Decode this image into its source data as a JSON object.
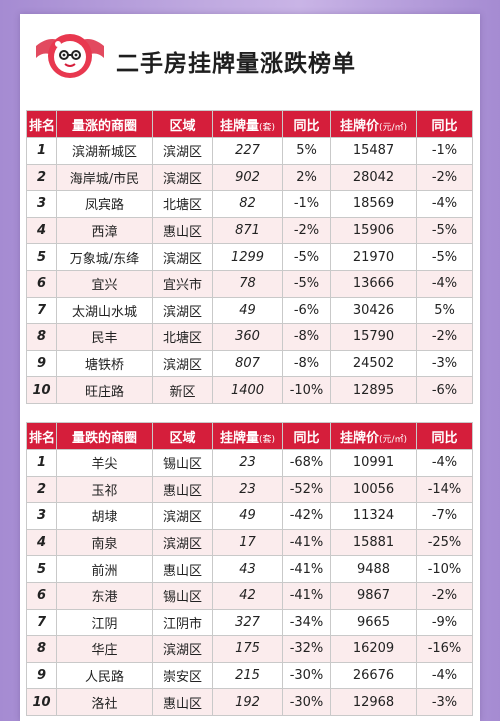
{
  "title": "二手房挂牌量涨跌榜单",
  "logo": {
    "icon": "ribbon-mascot-icon",
    "accent": "#d51e3b"
  },
  "colors": {
    "header_bg": "#d51e3b",
    "stripe": "#fbeced"
  },
  "table_up": {
    "headers": {
      "rank": "排名",
      "area": "量涨的商圈",
      "district": "区域",
      "count": "挂牌量",
      "count_unit": "(套)",
      "yoy1": "同比",
      "price": "挂牌价",
      "price_unit": "(元/㎡)",
      "yoy2": "同比"
    },
    "rows": [
      {
        "rank": "1",
        "area": "滨湖新城区",
        "district": "滨湖区",
        "count": "227",
        "yoy1": "5%",
        "price": "15487",
        "yoy2": "-1%"
      },
      {
        "rank": "2",
        "area": "海岸城/市民",
        "district": "滨湖区",
        "count": "902",
        "yoy1": "2%",
        "price": "28042",
        "yoy2": "-2%"
      },
      {
        "rank": "3",
        "area": "凤宾路",
        "district": "北塘区",
        "count": "82",
        "yoy1": "-1%",
        "price": "18569",
        "yoy2": "-4%"
      },
      {
        "rank": "4",
        "area": "西漳",
        "district": "惠山区",
        "count": "871",
        "yoy1": "-2%",
        "price": "15906",
        "yoy2": "-5%"
      },
      {
        "rank": "5",
        "area": "万象城/东绛",
        "district": "滨湖区",
        "count": "1299",
        "yoy1": "-5%",
        "price": "21970",
        "yoy2": "-5%"
      },
      {
        "rank": "6",
        "area": "宜兴",
        "district": "宜兴市",
        "count": "78",
        "yoy1": "-5%",
        "price": "13666",
        "yoy2": "-4%"
      },
      {
        "rank": "7",
        "area": "太湖山水城",
        "district": "滨湖区",
        "count": "49",
        "yoy1": "-6%",
        "price": "30426",
        "yoy2": "5%"
      },
      {
        "rank": "8",
        "area": "民丰",
        "district": "北塘区",
        "count": "360",
        "yoy1": "-8%",
        "price": "15790",
        "yoy2": "-2%"
      },
      {
        "rank": "9",
        "area": "塘铁桥",
        "district": "滨湖区",
        "count": "807",
        "yoy1": "-8%",
        "price": "24502",
        "yoy2": "-3%"
      },
      {
        "rank": "10",
        "area": "旺庄路",
        "district": "新区",
        "count": "1400",
        "yoy1": "-10%",
        "price": "12895",
        "yoy2": "-6%"
      }
    ]
  },
  "table_down": {
    "headers": {
      "rank": "排名",
      "area": "量跌的商圈",
      "district": "区域",
      "count": "挂牌量",
      "count_unit": "(套)",
      "yoy1": "同比",
      "price": "挂牌价",
      "price_unit": "(元/㎡)",
      "yoy2": "同比"
    },
    "rows": [
      {
        "rank": "1",
        "area": "羊尖",
        "district": "锡山区",
        "count": "23",
        "yoy1": "-68%",
        "price": "10991",
        "yoy2": "-4%"
      },
      {
        "rank": "2",
        "area": "玉祁",
        "district": "惠山区",
        "count": "23",
        "yoy1": "-52%",
        "price": "10056",
        "yoy2": "-14%"
      },
      {
        "rank": "3",
        "area": "胡埭",
        "district": "滨湖区",
        "count": "49",
        "yoy1": "-42%",
        "price": "11324",
        "yoy2": "-7%"
      },
      {
        "rank": "4",
        "area": "南泉",
        "district": "滨湖区",
        "count": "17",
        "yoy1": "-41%",
        "price": "15881",
        "yoy2": "-25%"
      },
      {
        "rank": "5",
        "area": "前洲",
        "district": "惠山区",
        "count": "43",
        "yoy1": "-41%",
        "price": "9488",
        "yoy2": "-10%"
      },
      {
        "rank": "6",
        "area": "东港",
        "district": "锡山区",
        "count": "42",
        "yoy1": "-41%",
        "price": "9867",
        "yoy2": "-2%"
      },
      {
        "rank": "7",
        "area": "江阴",
        "district": "江阴市",
        "count": "327",
        "yoy1": "-34%",
        "price": "9665",
        "yoy2": "-9%"
      },
      {
        "rank": "8",
        "area": "华庄",
        "district": "滨湖区",
        "count": "175",
        "yoy1": "-32%",
        "price": "16209",
        "yoy2": "-16%"
      },
      {
        "rank": "9",
        "area": "人民路",
        "district": "崇安区",
        "count": "215",
        "yoy1": "-30%",
        "price": "26676",
        "yoy2": "-4%"
      },
      {
        "rank": "10",
        "area": "洛社",
        "district": "惠山区",
        "count": "192",
        "yoy1": "-30%",
        "price": "12968",
        "yoy2": "-3%"
      }
    ]
  }
}
